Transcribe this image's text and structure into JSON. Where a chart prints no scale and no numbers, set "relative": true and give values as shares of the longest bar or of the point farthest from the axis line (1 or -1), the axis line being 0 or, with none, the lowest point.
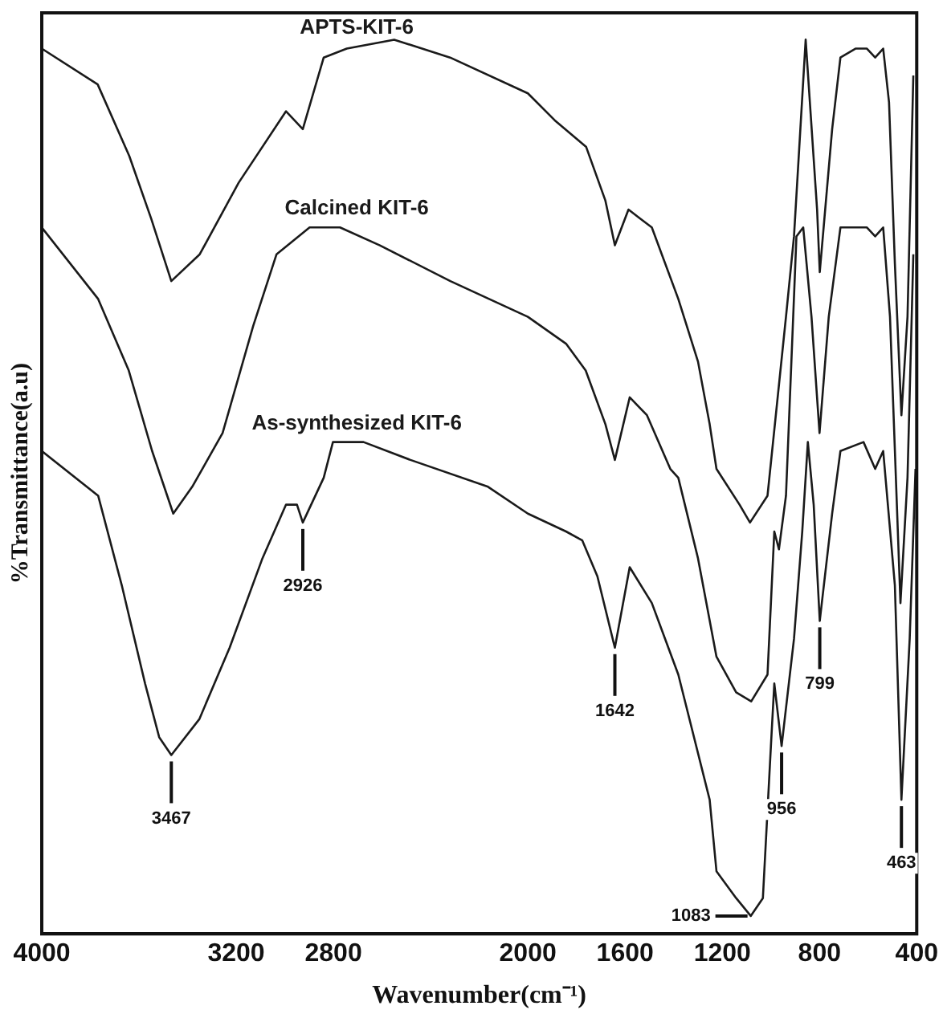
{
  "chart_data": {
    "type": "line",
    "relative": true,
    "xlabel": "Wavenumber(cm⁻¹)",
    "ylabel": "%Transmittance(a.u)",
    "xlim": [
      4000,
      400
    ],
    "xticks": [
      4000,
      3200,
      2800,
      2000,
      1600,
      1200,
      800,
      400
    ],
    "grid": false,
    "legend": false,
    "marker": "none",
    "line_style": "solid",
    "series": [
      {
        "name": "APTS-KIT-6",
        "color": "#1a1a1a",
        "x": [
          4000,
          3770,
          3640,
          3550,
          3467,
          3350,
          3190,
          2995,
          2926,
          2840,
          2745,
          2550,
          2320,
          2000,
          1890,
          1760,
          1681,
          1642,
          1586,
          1538,
          1490,
          1381,
          1300,
          1252,
          1224,
          1129,
          1086,
          1014,
          938,
          905,
          857,
          810,
          799,
          748,
          714,
          652,
          605,
          571,
          538,
          514,
          490,
          463,
          438,
          414
        ],
        "values": [
          0.99,
          0.95,
          0.87,
          0.8,
          0.73,
          0.76,
          0.84,
          0.92,
          0.9,
          0.98,
          0.99,
          1.0,
          0.98,
          0.94,
          0.91,
          0.88,
          0.82,
          0.77,
          0.81,
          0.8,
          0.79,
          0.71,
          0.64,
          0.57,
          0.52,
          0.48,
          0.46,
          0.49,
          0.69,
          0.78,
          1.0,
          0.81,
          0.74,
          0.9,
          0.98,
          0.99,
          0.99,
          0.98,
          0.99,
          0.93,
          0.75,
          0.58,
          0.69,
          0.96
        ]
      },
      {
        "name": "Calcined KIT-6",
        "color": "#1a1a1a",
        "x": [
          4000,
          3768,
          3642,
          3546,
          3459,
          3381,
          3256,
          3130,
          3034,
          2898,
          2773,
          2609,
          2319,
          2000,
          1843,
          1762,
          1681,
          1642,
          1581,
          1510,
          1414,
          1381,
          1300,
          1224,
          1143,
          1081,
          1014,
          986,
          967,
          938,
          895,
          867,
          833,
          800,
          762,
          714,
          652,
          605,
          571,
          538,
          510,
          467,
          438,
          414
        ],
        "values": [
          0.79,
          0.71,
          0.63,
          0.54,
          0.47,
          0.5,
          0.56,
          0.68,
          0.76,
          0.79,
          0.79,
          0.77,
          0.73,
          0.69,
          0.66,
          0.63,
          0.57,
          0.53,
          0.6,
          0.58,
          0.52,
          0.51,
          0.42,
          0.31,
          0.27,
          0.26,
          0.29,
          0.45,
          0.43,
          0.49,
          0.78,
          0.79,
          0.69,
          0.56,
          0.69,
          0.79,
          0.79,
          0.79,
          0.78,
          0.79,
          0.69,
          0.37,
          0.51,
          0.76
        ]
      },
      {
        "name": "As-synthesized KIT-6",
        "color": "#1a1a1a",
        "x": [
          4000,
          3768,
          3671,
          3575,
          3517,
          3467,
          3352,
          3227,
          3092,
          2995,
          2950,
          2926,
          2840,
          2802,
          2676,
          2483,
          2164,
          2000,
          1843,
          1776,
          1714,
          1642,
          1581,
          1490,
          1381,
          1252,
          1224,
          1143,
          1083,
          1033,
          1000,
          986,
          956,
          905,
          871,
          848,
          824,
          799,
          748,
          714,
          619,
          571,
          538,
          490,
          463,
          429,
          405
        ],
        "values": [
          0.54,
          0.49,
          0.39,
          0.28,
          0.22,
          0.2,
          0.24,
          0.32,
          0.42,
          0.48,
          0.48,
          0.46,
          0.51,
          0.55,
          0.55,
          0.53,
          0.5,
          0.47,
          0.45,
          0.44,
          0.4,
          0.32,
          0.41,
          0.37,
          0.29,
          0.15,
          0.07,
          0.04,
          0.02,
          0.04,
          0.21,
          0.28,
          0.21,
          0.33,
          0.45,
          0.55,
          0.48,
          0.35,
          0.47,
          0.54,
          0.55,
          0.52,
          0.54,
          0.39,
          0.15,
          0.33,
          0.52
        ]
      }
    ],
    "annotations": [
      {
        "text": "3467",
        "x": 3467,
        "y": 0.2
      },
      {
        "text": "2926",
        "x": 2926,
        "y": 0.46
      },
      {
        "text": "1642",
        "x": 1642,
        "y": 0.32
      },
      {
        "text": "1083",
        "x": 1083,
        "y": 0.02
      },
      {
        "text": "956",
        "x": 956,
        "y": 0.21
      },
      {
        "text": "799",
        "x": 799,
        "y": 0.35
      },
      {
        "text": "463",
        "x": 463,
        "y": 0.15
      }
    ]
  }
}
